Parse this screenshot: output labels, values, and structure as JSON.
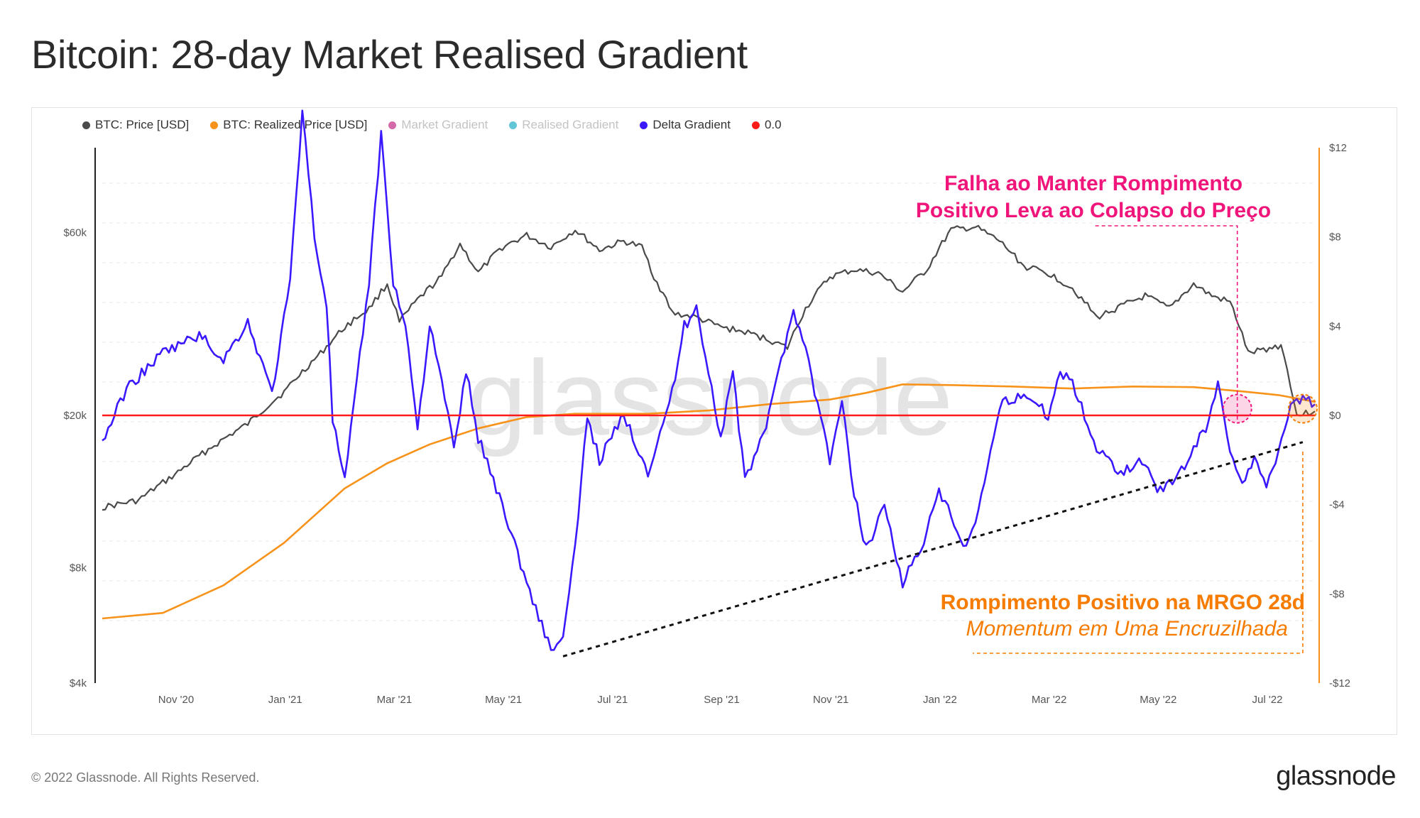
{
  "title": "Bitcoin: 28-day Market Realised Gradient",
  "legend": [
    {
      "label": "BTC: Price [USD]",
      "color": "#4a4a4a",
      "muted": false
    },
    {
      "label": "BTC: Realized Price [USD]",
      "color": "#f7931a",
      "muted": false
    },
    {
      "label": "Market Gradient",
      "color": "#d46aa8",
      "muted": true
    },
    {
      "label": "Realised Gradient",
      "color": "#62c6d6",
      "muted": true
    },
    {
      "label": "Delta Gradient",
      "color": "#3a19ff",
      "muted": false
    },
    {
      "label": "0.0",
      "color": "#ff1a1a",
      "muted": false
    }
  ],
  "watermark": "glassnode",
  "footer": "© 2022 Glassnode. All Rights Reserved.",
  "brand": "glassnode",
  "annotations": {
    "top_line1": "Falha ao Manter Rompimento",
    "top_line2": "Positivo Leva ao Colapso do Preço",
    "top_color": "#f0157a",
    "bottom_line1": "Rompimento Positivo na MRGO 28d",
    "bottom_line2": "Momentum em Uma Encruzilhada",
    "bottom_color": "#f57c00"
  },
  "chart_data": {
    "type": "line",
    "x_ticks": [
      "Nov '20",
      "Jan '21",
      "Mar '21",
      "May '21",
      "Jul '21",
      "Sep '21",
      "Nov '21",
      "Jan '22",
      "Mar '22",
      "May '22",
      "Jul '22"
    ],
    "y_left": {
      "scale": "log",
      "ticks": [
        "$4k",
        "$8k",
        "$20k",
        "$60k"
      ],
      "range": [
        4000,
        100000
      ]
    },
    "y_right": {
      "ticks": [
        "$12",
        "$8",
        "$4",
        "$0",
        "-$4",
        "-$8",
        "-$12"
      ],
      "range": [
        -12,
        12
      ]
    },
    "series": [
      {
        "name": "BTC: Price [USD]",
        "axis": "left",
        "color": "#4a4a4a",
        "points": [
          [
            0,
            11500
          ],
          [
            0.03,
            12000
          ],
          [
            0.06,
            14000
          ],
          [
            0.09,
            16500
          ],
          [
            0.12,
            19000
          ],
          [
            0.15,
            23000
          ],
          [
            0.18,
            29000
          ],
          [
            0.2,
            34000
          ],
          [
            0.22,
            38000
          ],
          [
            0.235,
            44000
          ],
          [
            0.245,
            35000
          ],
          [
            0.26,
            40000
          ],
          [
            0.28,
            46000
          ],
          [
            0.295,
            56000
          ],
          [
            0.31,
            47000
          ],
          [
            0.33,
            55000
          ],
          [
            0.35,
            59000
          ],
          [
            0.37,
            55000
          ],
          [
            0.39,
            61000
          ],
          [
            0.41,
            54000
          ],
          [
            0.43,
            57000
          ],
          [
            0.445,
            55000
          ],
          [
            0.455,
            46000
          ],
          [
            0.47,
            37000
          ],
          [
            0.49,
            36000
          ],
          [
            0.51,
            34000
          ],
          [
            0.53,
            33000
          ],
          [
            0.55,
            31500
          ],
          [
            0.565,
            30000
          ],
          [
            0.58,
            38000
          ],
          [
            0.6,
            46000
          ],
          [
            0.62,
            48000
          ],
          [
            0.64,
            47000
          ],
          [
            0.66,
            42000
          ],
          [
            0.68,
            48000
          ],
          [
            0.7,
            61000
          ],
          [
            0.72,
            62000
          ],
          [
            0.74,
            57000
          ],
          [
            0.76,
            49000
          ],
          [
            0.78,
            47000
          ],
          [
            0.8,
            43000
          ],
          [
            0.82,
            36000
          ],
          [
            0.84,
            38500
          ],
          [
            0.86,
            41000
          ],
          [
            0.88,
            38000
          ],
          [
            0.9,
            44000
          ],
          [
            0.915,
            41000
          ],
          [
            0.93,
            39500
          ],
          [
            0.945,
            29000
          ],
          [
            0.96,
            29800
          ],
          [
            0.972,
            30500
          ],
          [
            0.985,
            20000
          ],
          [
            1.0,
            20500
          ]
        ]
      },
      {
        "name": "BTC: Realized Price [USD]",
        "axis": "left",
        "color": "#f7931a",
        "points": [
          [
            0,
            5900
          ],
          [
            0.05,
            6100
          ],
          [
            0.1,
            7200
          ],
          [
            0.15,
            9300
          ],
          [
            0.2,
            12900
          ],
          [
            0.235,
            15000
          ],
          [
            0.27,
            16800
          ],
          [
            0.31,
            18500
          ],
          [
            0.35,
            19800
          ],
          [
            0.39,
            20200
          ],
          [
            0.45,
            20200
          ],
          [
            0.5,
            20600
          ],
          [
            0.55,
            21400
          ],
          [
            0.6,
            22000
          ],
          [
            0.63,
            22900
          ],
          [
            0.66,
            24100
          ],
          [
            0.7,
            24000
          ],
          [
            0.75,
            23800
          ],
          [
            0.8,
            23500
          ],
          [
            0.85,
            23800
          ],
          [
            0.9,
            23700
          ],
          [
            0.94,
            23100
          ],
          [
            0.97,
            22600
          ],
          [
            1.0,
            21700
          ]
        ]
      },
      {
        "name": "Delta Gradient",
        "axis": "right",
        "color": "#3a19ff",
        "points": [
          [
            0,
            -1.2
          ],
          [
            0.02,
            1.2
          ],
          [
            0.05,
            2.8
          ],
          [
            0.08,
            3.6
          ],
          [
            0.1,
            2.5
          ],
          [
            0.12,
            4.2
          ],
          [
            0.14,
            1.0
          ],
          [
            0.155,
            6.0
          ],
          [
            0.165,
            13.8
          ],
          [
            0.175,
            8.0
          ],
          [
            0.185,
            5.0
          ],
          [
            0.19,
            -0.2
          ],
          [
            0.2,
            -3.0
          ],
          [
            0.21,
            1.5
          ],
          [
            0.22,
            6.0
          ],
          [
            0.23,
            12.6
          ],
          [
            0.24,
            6.0
          ],
          [
            0.25,
            4.0
          ],
          [
            0.26,
            -0.5
          ],
          [
            0.27,
            4.0
          ],
          [
            0.28,
            1.5
          ],
          [
            0.29,
            -1.5
          ],
          [
            0.3,
            2.0
          ],
          [
            0.31,
            -1.0
          ],
          [
            0.33,
            -4.0
          ],
          [
            0.35,
            -7.5
          ],
          [
            0.37,
            -10.5
          ],
          [
            0.38,
            -10.0
          ],
          [
            0.39,
            -6.0
          ],
          [
            0.4,
            0.0
          ],
          [
            0.41,
            -2.0
          ],
          [
            0.43,
            0.0
          ],
          [
            0.45,
            -2.5
          ],
          [
            0.47,
            1.0
          ],
          [
            0.48,
            4.0
          ],
          [
            0.49,
            4.8
          ],
          [
            0.5,
            2.0
          ],
          [
            0.51,
            -1.0
          ],
          [
            0.52,
            2.0
          ],
          [
            0.53,
            -3.0
          ],
          [
            0.55,
            0.0
          ],
          [
            0.56,
            2.5
          ],
          [
            0.57,
            4.8
          ],
          [
            0.58,
            3.0
          ],
          [
            0.6,
            -2.0
          ],
          [
            0.61,
            0.5
          ],
          [
            0.62,
            -3.5
          ],
          [
            0.63,
            -6.0
          ],
          [
            0.645,
            -4.0
          ],
          [
            0.66,
            -7.5
          ],
          [
            0.675,
            -6.0
          ],
          [
            0.69,
            -3.5
          ],
          [
            0.7,
            -4.5
          ],
          [
            0.71,
            -6.0
          ],
          [
            0.72,
            -5.0
          ],
          [
            0.73,
            -2.5
          ],
          [
            0.74,
            0.5
          ],
          [
            0.76,
            1.0
          ],
          [
            0.78,
            0.0
          ],
          [
            0.79,
            2.0
          ],
          [
            0.8,
            1.5
          ],
          [
            0.81,
            0.0
          ],
          [
            0.82,
            -1.5
          ],
          [
            0.84,
            -2.5
          ],
          [
            0.86,
            -2.0
          ],
          [
            0.87,
            -3.5
          ],
          [
            0.89,
            -2.5
          ],
          [
            0.91,
            -0.5
          ],
          [
            0.92,
            1.4
          ],
          [
            0.93,
            -1.5
          ],
          [
            0.94,
            -3.0
          ],
          [
            0.95,
            -2.0
          ],
          [
            0.96,
            -3.2
          ],
          [
            0.97,
            -1.5
          ],
          [
            0.98,
            0.5
          ],
          [
            0.99,
            0.8
          ],
          [
            1.0,
            0.5
          ]
        ]
      },
      {
        "name": "0.0",
        "axis": "right",
        "color": "#ff1a1a",
        "points": [
          [
            0,
            0
          ],
          [
            1.0,
            0
          ]
        ]
      }
    ],
    "trendline": {
      "color": "#111111",
      "points": [
        [
          0.38,
          -10.8
        ],
        [
          0.99,
          -1.2
        ]
      ]
    },
    "highlights": [
      {
        "x": 0.936,
        "y": 0.3,
        "color": "#f0157a"
      },
      {
        "x": 0.99,
        "y": 0.3,
        "color": "#f57c00"
      }
    ]
  }
}
